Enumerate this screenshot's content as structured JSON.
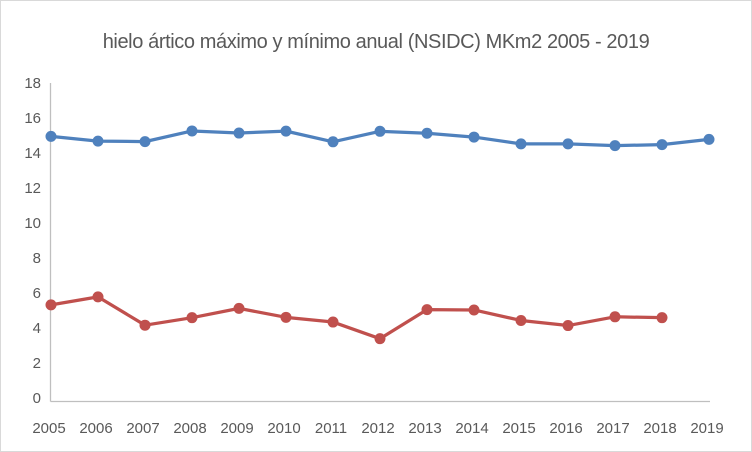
{
  "chart_data": {
    "type": "line",
    "title": "hielo ártico máximo y mínimo anual (NSIDC) MKm2 2005 - 2019",
    "x": [
      "2005",
      "2006",
      "2007",
      "2008",
      "2009",
      "2010",
      "2011",
      "2012",
      "2013",
      "2014",
      "2015",
      "2016",
      "2017",
      "2018",
      "2019"
    ],
    "series": [
      {
        "name": "maximo",
        "color": "#4F81BD",
        "values": [
          14.95,
          14.68,
          14.65,
          15.26,
          15.14,
          15.25,
          14.64,
          15.24,
          15.13,
          14.91,
          14.52,
          14.52,
          14.42,
          14.48,
          14.78
        ]
      },
      {
        "name": "minimo",
        "color": "#C0504D",
        "values": [
          5.32,
          5.78,
          4.16,
          4.59,
          5.12,
          4.61,
          4.34,
          3.39,
          5.05,
          5.03,
          4.43,
          4.14,
          4.64,
          4.59,
          null
        ]
      }
    ],
    "ylim": [
      0,
      18
    ],
    "y_ticks": [
      0,
      2,
      4,
      6,
      8,
      10,
      12,
      14,
      16,
      18
    ],
    "grid": false,
    "legend": "none"
  },
  "colors": {
    "axis_line": "#BFBFBF",
    "text": "#595959",
    "border": "#D9D9D9",
    "background": "#FFFFFF"
  }
}
